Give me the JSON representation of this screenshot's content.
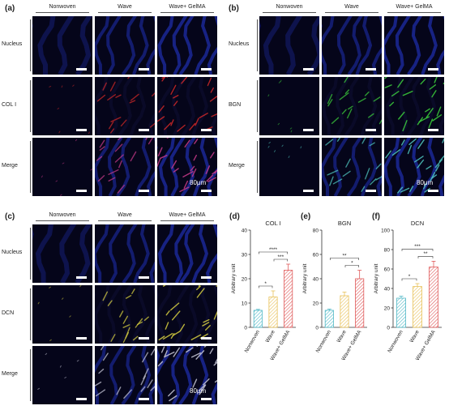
{
  "panels": {
    "a": {
      "label": "(a)",
      "columns": [
        "Nonwoven",
        "Wave",
        "Wave+ GelMA"
      ],
      "rows": [
        {
          "label": "Nucleus",
          "stain": "blue"
        },
        {
          "label": "COL I",
          "stain": "red"
        },
        {
          "label": "Merge",
          "stain": "merge-red"
        }
      ],
      "scale_text": "80μm"
    },
    "b": {
      "label": "(b)",
      "columns": [
        "Nonwoven",
        "Wave",
        "Wave+ GelMA"
      ],
      "rows": [
        {
          "label": "Nucleus",
          "stain": "blue"
        },
        {
          "label": "BGN",
          "stain": "green"
        },
        {
          "label": "Merge",
          "stain": "merge-green"
        }
      ],
      "scale_text": "80μm"
    },
    "c": {
      "label": "(c)",
      "columns": [
        "Nonwoven",
        "Wave",
        "Wave+ GelMA"
      ],
      "rows": [
        {
          "label": "Nucleus",
          "stain": "blue"
        },
        {
          "label": "DCN",
          "stain": "yellow"
        },
        {
          "label": "Merge",
          "stain": "merge-yellow"
        }
      ],
      "scale_text": "80μm"
    }
  },
  "colors": {
    "nonwoven": "#4fb8c6",
    "wave": "#e8c25a",
    "gelma": "#e05a5a",
    "fluor_bg": "#05051a"
  },
  "chart_data": [
    {
      "panel": "(d)",
      "type": "bar",
      "title": "COL I",
      "ylabel": "Arbitrary unit",
      "categories": [
        "Nonwoven",
        "Wave",
        "Wave+ GelMA"
      ],
      "values": [
        7,
        12.5,
        23.5
      ],
      "errors": [
        0.4,
        2.5,
        2.5
      ],
      "ylim": [
        0,
        40
      ],
      "yticks": [
        0,
        10,
        20,
        30,
        40
      ],
      "significance": [
        {
          "from": 0,
          "to": 1,
          "label": "*"
        },
        {
          "from": 1,
          "to": 2,
          "label": "***"
        },
        {
          "from": 0,
          "to": 2,
          "label": "****"
        }
      ]
    },
    {
      "panel": "(e)",
      "type": "bar",
      "title": "BGN",
      "ylabel": "Arbitrary unit",
      "categories": [
        "Nonwoven",
        "Wave",
        "Wave+ GelMA"
      ],
      "values": [
        14,
        26,
        40
      ],
      "errors": [
        1,
        3,
        7
      ],
      "ylim": [
        0,
        80
      ],
      "yticks": [
        0,
        20,
        40,
        60,
        80
      ],
      "significance": [
        {
          "from": 1,
          "to": 2,
          "label": "*"
        },
        {
          "from": 0,
          "to": 2,
          "label": "**"
        }
      ]
    },
    {
      "panel": "(f)",
      "type": "bar",
      "title": "DCN",
      "ylabel": "Arbitrary unit",
      "categories": [
        "Nonwoven",
        "Wave",
        "Wave+ GelMA"
      ],
      "values": [
        30,
        42,
        62
      ],
      "errors": [
        2,
        3,
        6
      ],
      "ylim": [
        0,
        100
      ],
      "yticks": [
        0,
        20,
        40,
        60,
        80,
        100
      ],
      "significance": [
        {
          "from": 0,
          "to": 1,
          "label": "*"
        },
        {
          "from": 1,
          "to": 2,
          "label": "**"
        },
        {
          "from": 0,
          "to": 2,
          "label": "***"
        }
      ]
    }
  ]
}
